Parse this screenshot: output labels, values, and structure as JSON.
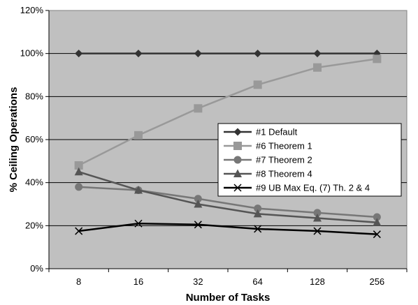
{
  "chart_data": {
    "type": "line",
    "title": "",
    "xlabel": "Number of Tasks",
    "ylabel": "% Ceiling Operations",
    "categories": [
      "8",
      "16",
      "32",
      "64",
      "128",
      "256"
    ],
    "ylim": [
      0,
      120
    ],
    "yticks": [
      0,
      20,
      40,
      60,
      80,
      100,
      120
    ],
    "ytick_labels": [
      "0%",
      "20%",
      "40%",
      "60%",
      "80%",
      "100%",
      "120%"
    ],
    "grid": "horizontal",
    "legend_position": "center-right",
    "plot_background": "#c0c0c0",
    "series": [
      {
        "name": "#1 Default",
        "marker": "diamond",
        "color": "#333333",
        "values": [
          100,
          100,
          100,
          100,
          100,
          100
        ]
      },
      {
        "name": "#6 Theorem 1",
        "marker": "square",
        "color": "#999999",
        "values": [
          48,
          62,
          74.5,
          85.5,
          93.5,
          97.5
        ]
      },
      {
        "name": "#7 Theorem 2",
        "marker": "circle",
        "color": "#777777",
        "values": [
          38,
          36.5,
          32.5,
          28,
          26,
          24
        ]
      },
      {
        "name": "#8 Theorem 4",
        "marker": "triangle",
        "color": "#555555",
        "values": [
          45,
          36.5,
          30,
          25.5,
          23.5,
          21.5
        ]
      },
      {
        "name": "#9 UB Max Eq. (7) Th. 2 & 4",
        "marker": "x",
        "color": "#000000",
        "values": [
          17.5,
          21,
          20.5,
          18.5,
          17.5,
          16
        ]
      }
    ]
  }
}
